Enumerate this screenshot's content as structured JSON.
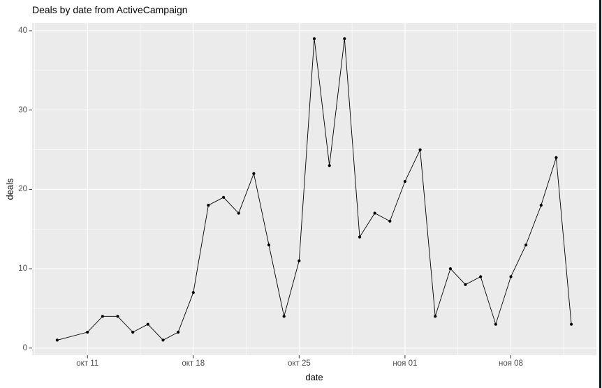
{
  "window": {
    "right_border_color": "#0d2027"
  },
  "chart_data": {
    "type": "line",
    "title": "Deals by date from ActiveCampaign",
    "xlabel": "date",
    "ylabel": "deals",
    "legend": "none",
    "grid": "on",
    "panel_bg": "#EBEBEB",
    "grid_color": "#FFFFFF",
    "series_color": "#000000",
    "tick_color": "#333333",
    "tick_label_color": "#4D4D4D",
    "x_unit": "days (day = offset from first point окт 09)",
    "xlim_days": [
      -1.66,
      35.66
    ],
    "ylim": [
      -0.9,
      40.97
    ],
    "x_ticks": [
      {
        "label": "окт 11",
        "day": 2
      },
      {
        "label": "окт 18",
        "day": 9
      },
      {
        "label": "окт 25",
        "day": 16
      },
      {
        "label": "ноя 01",
        "day": 23
      },
      {
        "label": "ноя 08",
        "day": 30
      }
    ],
    "y_ticks": [
      {
        "label": "0",
        "value": 0
      },
      {
        "label": "10",
        "value": 10
      },
      {
        "label": "20",
        "value": 20
      },
      {
        "label": "30",
        "value": 30
      },
      {
        "label": "40",
        "value": 40
      }
    ],
    "x_minor_days": [
      -1.5,
      5.5,
      12.5,
      19.5,
      26.5,
      33.5
    ],
    "y_minor_values": [
      5,
      15,
      25,
      35
    ],
    "points": [
      {
        "date": "окт 09",
        "day": 0,
        "value": 1
      },
      {
        "date": "окт 11",
        "day": 2,
        "value": 2
      },
      {
        "date": "окт 12",
        "day": 3,
        "value": 4
      },
      {
        "date": "окт 13",
        "day": 4,
        "value": 4
      },
      {
        "date": "окт 14",
        "day": 5,
        "value": 2
      },
      {
        "date": "окт 15",
        "day": 6,
        "value": 3
      },
      {
        "date": "окт 16",
        "day": 7,
        "value": 1
      },
      {
        "date": "окт 17",
        "day": 8,
        "value": 2
      },
      {
        "date": "окт 18",
        "day": 9,
        "value": 7
      },
      {
        "date": "окт 19",
        "day": 10,
        "value": 18
      },
      {
        "date": "окт 20",
        "day": 11,
        "value": 19
      },
      {
        "date": "окт 21",
        "day": 12,
        "value": 17
      },
      {
        "date": "окт 22",
        "day": 13,
        "value": 22
      },
      {
        "date": "окт 23",
        "day": 14,
        "value": 13
      },
      {
        "date": "окт 24",
        "day": 15,
        "value": 4
      },
      {
        "date": "окт 25",
        "day": 16,
        "value": 11
      },
      {
        "date": "окт 26",
        "day": 17,
        "value": 39
      },
      {
        "date": "окт 27",
        "day": 18,
        "value": 23
      },
      {
        "date": "окт 28",
        "day": 19,
        "value": 39
      },
      {
        "date": "окт 29",
        "day": 20,
        "value": 14
      },
      {
        "date": "окт 30",
        "day": 21,
        "value": 17
      },
      {
        "date": "окт 31",
        "day": 22,
        "value": 16
      },
      {
        "date": "ноя 01",
        "day": 23,
        "value": 21
      },
      {
        "date": "ноя 02",
        "day": 24,
        "value": 25
      },
      {
        "date": "ноя 03",
        "day": 25,
        "value": 4
      },
      {
        "date": "ноя 04",
        "day": 26,
        "value": 10
      },
      {
        "date": "ноя 05",
        "day": 27,
        "value": 8
      },
      {
        "date": "ноя 06",
        "day": 28,
        "value": 9
      },
      {
        "date": "ноя 07",
        "day": 29,
        "value": 3
      },
      {
        "date": "ноя 08",
        "day": 30,
        "value": 9
      },
      {
        "date": "ноя 09",
        "day": 31,
        "value": 13
      },
      {
        "date": "ноя 10",
        "day": 32,
        "value": 18
      },
      {
        "date": "ноя 11",
        "day": 33,
        "value": 24
      },
      {
        "date": "ноя 12",
        "day": 34,
        "value": 3
      }
    ]
  }
}
